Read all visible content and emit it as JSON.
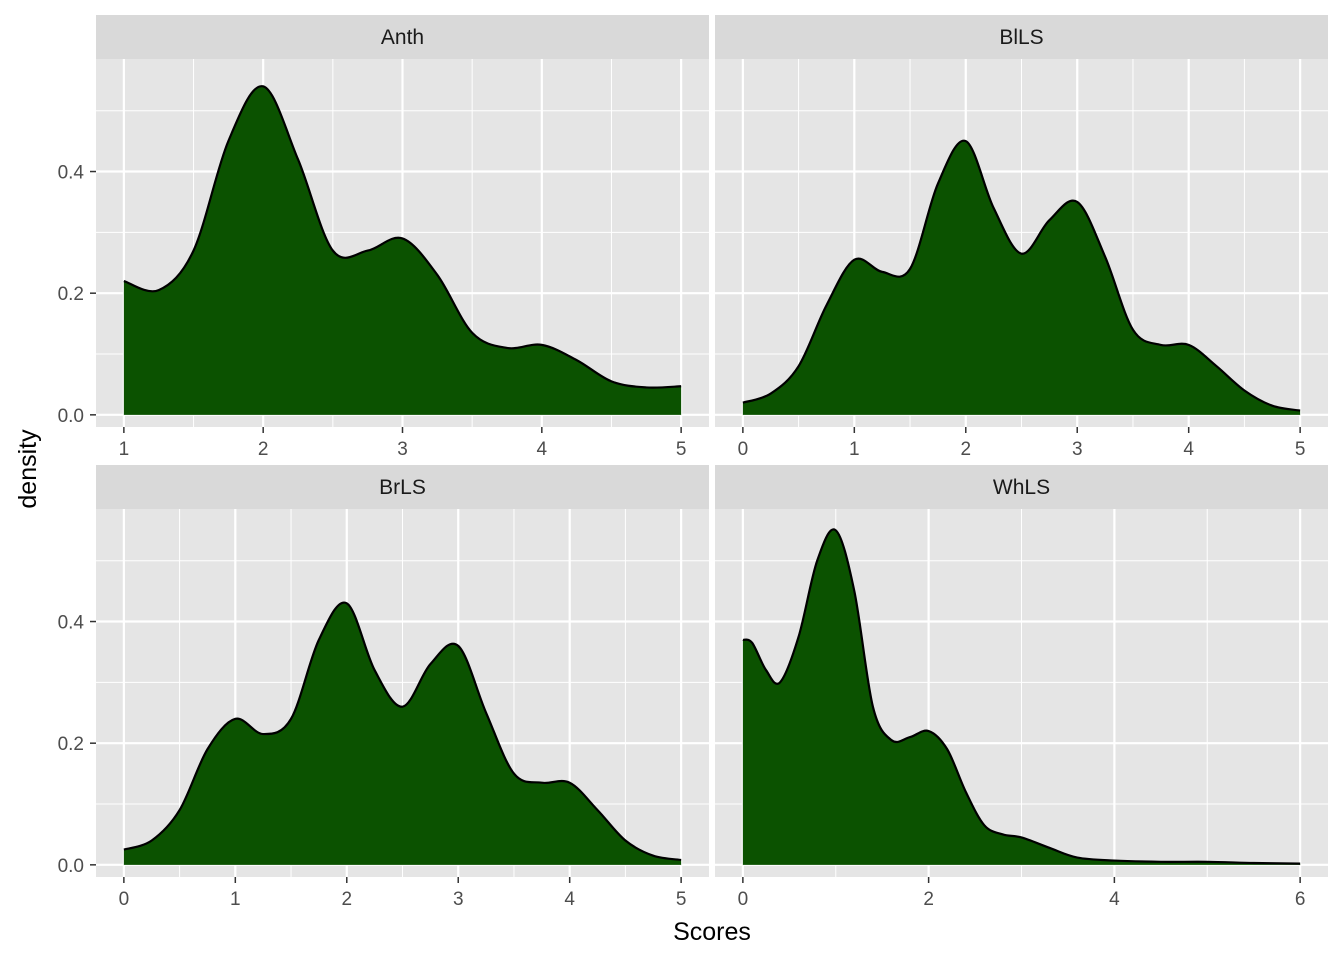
{
  "chart_data": {
    "type": "area",
    "chart_kind": "faceted density plot",
    "xlabel": "Scores",
    "ylabel": "density",
    "facet_rows": 2,
    "facet_cols": 2,
    "shared_y": true,
    "ylim": [
      -0.02,
      0.585
    ],
    "y_ticks": [
      0.0,
      0.2,
      0.4
    ],
    "y_tick_labels": [
      "0.0",
      "0.2",
      "0.4"
    ],
    "grid": true,
    "panel_background": "#e5e5e5",
    "strip_background": "#d9d9d9",
    "grid_color": "#ffffff",
    "fill_color": "#0b5200",
    "line_color": "#000000",
    "facets": [
      {
        "name": "Anth",
        "xlim": [
          0.8,
          5.2
        ],
        "x_ticks": [
          1,
          2,
          3,
          4,
          5
        ],
        "x_tick_labels": [
          "1",
          "2",
          "3",
          "4",
          "5"
        ],
        "x": [
          1.0,
          1.25,
          1.5,
          1.75,
          2.0,
          2.25,
          2.5,
          2.75,
          3.0,
          3.25,
          3.5,
          3.75,
          4.0,
          4.25,
          4.5,
          4.75,
          5.0
        ],
        "y": [
          0.22,
          0.205,
          0.27,
          0.45,
          0.54,
          0.42,
          0.27,
          0.27,
          0.29,
          0.23,
          0.135,
          0.11,
          0.115,
          0.09,
          0.055,
          0.045,
          0.047
        ]
      },
      {
        "name": "BlLS",
        "xlim": [
          -0.25,
          5.25
        ],
        "x_ticks": [
          0,
          1,
          2,
          3,
          4,
          5
        ],
        "x_tick_labels": [
          "0",
          "1",
          "2",
          "3",
          "4",
          "5"
        ],
        "x": [
          0.0,
          0.25,
          0.5,
          0.75,
          1.0,
          1.25,
          1.5,
          1.75,
          2.0,
          2.25,
          2.5,
          2.75,
          3.0,
          3.25,
          3.5,
          3.75,
          4.0,
          4.25,
          4.5,
          4.75,
          5.0
        ],
        "y": [
          0.02,
          0.035,
          0.08,
          0.18,
          0.255,
          0.235,
          0.24,
          0.38,
          0.45,
          0.34,
          0.265,
          0.32,
          0.35,
          0.26,
          0.14,
          0.115,
          0.115,
          0.08,
          0.04,
          0.015,
          0.007
        ]
      },
      {
        "name": "BrLS",
        "xlim": [
          -0.25,
          5.25
        ],
        "x_ticks": [
          0,
          1,
          2,
          3,
          4,
          5
        ],
        "x_tick_labels": [
          "0",
          "1",
          "2",
          "3",
          "4",
          "5"
        ],
        "x": [
          0.0,
          0.25,
          0.5,
          0.75,
          1.0,
          1.25,
          1.5,
          1.75,
          2.0,
          2.25,
          2.5,
          2.75,
          3.0,
          3.25,
          3.5,
          3.75,
          4.0,
          4.25,
          4.5,
          4.75,
          5.0
        ],
        "y": [
          0.025,
          0.04,
          0.09,
          0.19,
          0.24,
          0.215,
          0.24,
          0.37,
          0.43,
          0.32,
          0.26,
          0.33,
          0.36,
          0.25,
          0.15,
          0.135,
          0.135,
          0.09,
          0.04,
          0.015,
          0.008
        ]
      },
      {
        "name": "WhLS",
        "xlim": [
          -0.3,
          6.3
        ],
        "x_ticks": [
          0,
          2,
          4,
          6
        ],
        "x_tick_labels": [
          "0",
          "2",
          "4",
          "6"
        ],
        "x": [
          0.0,
          0.1,
          0.25,
          0.4,
          0.6,
          0.8,
          1.0,
          1.2,
          1.4,
          1.6,
          1.8,
          2.0,
          2.2,
          2.4,
          2.6,
          2.8,
          3.0,
          3.3,
          3.6,
          4.0,
          4.5,
          5.0,
          5.5,
          6.0
        ],
        "y": [
          0.37,
          0.365,
          0.32,
          0.3,
          0.375,
          0.5,
          0.55,
          0.45,
          0.26,
          0.205,
          0.21,
          0.22,
          0.19,
          0.12,
          0.065,
          0.05,
          0.045,
          0.028,
          0.012,
          0.007,
          0.005,
          0.005,
          0.003,
          0.002
        ]
      }
    ]
  }
}
